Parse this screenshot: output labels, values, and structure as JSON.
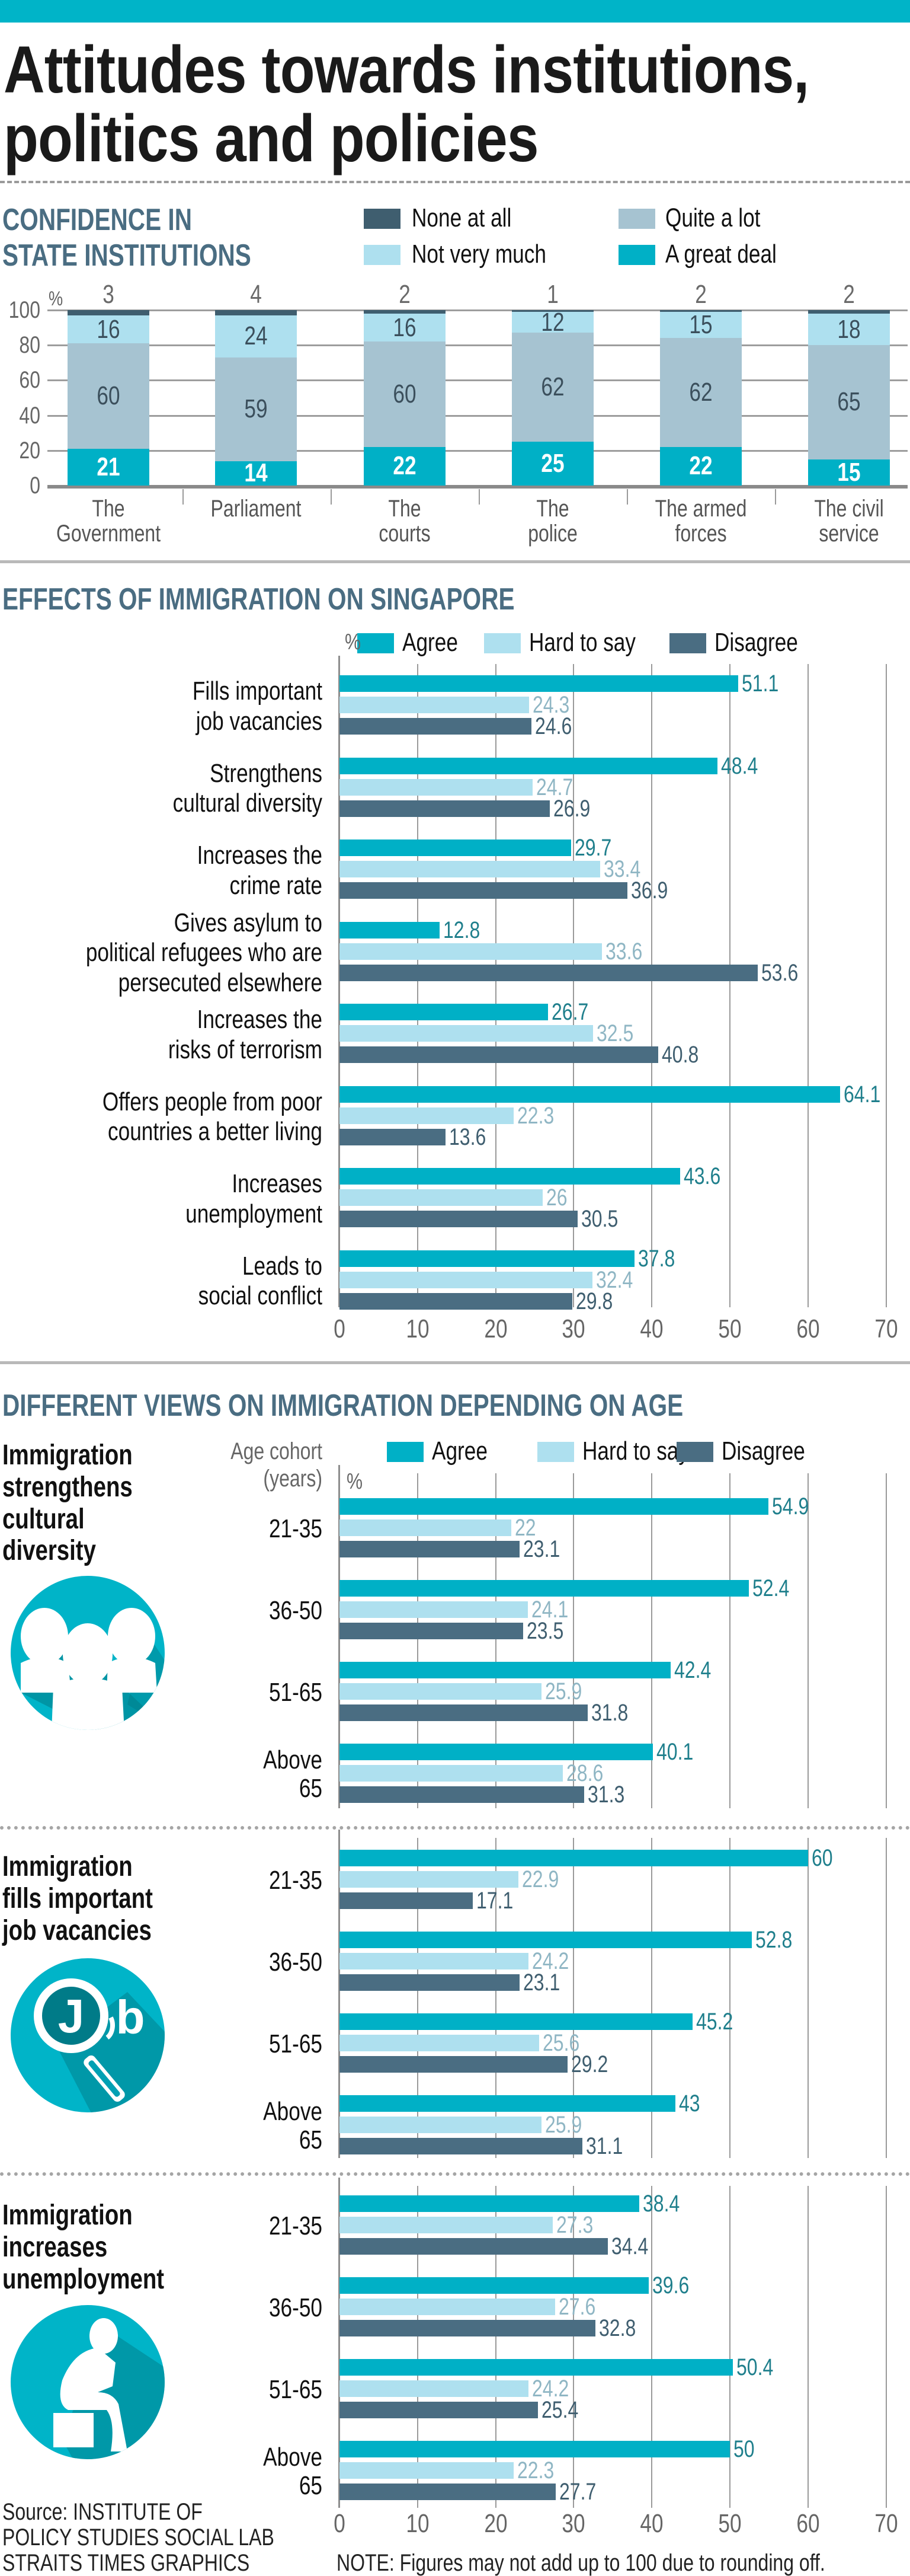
{
  "title": {
    "line1": "Attitudes towards institutions,",
    "line2": "politics and policies"
  },
  "colors": {
    "brand_teal": "#00b4c8",
    "none_at_all": "#3f5e6f",
    "not_very_much": "#aee0ef",
    "quite_a_lot": "#a6c3d1",
    "a_great_deal": "#00b0c6",
    "agree": "#00b0c6",
    "hard_to_say": "#aee0ef",
    "disagree": "#4a6d82",
    "agree_label": "#1f7f8c",
    "hard_to_say_label": "#8fb6c4",
    "disagree_label": "#3f5e6f",
    "section_heading": "#4a6d82"
  },
  "section1": {
    "heading_line1": "CONFIDENCE IN",
    "heading_line2": "STATE INSTITUTIONS",
    "legend": [
      {
        "key": "none_at_all",
        "label": "None at all"
      },
      {
        "key": "quite_a_lot",
        "label": "Quite a lot"
      },
      {
        "key": "not_very_much",
        "label": "Not very much"
      },
      {
        "key": "a_great_deal",
        "label": "A great deal"
      }
    ]
  },
  "section2": {
    "heading": "EFFECTS OF IMMIGRATION ON SINGAPORE",
    "legend": [
      {
        "key": "agree",
        "label": "Agree"
      },
      {
        "key": "hard_to_say",
        "label": "Hard to say"
      },
      {
        "key": "disagree",
        "label": "Disagree"
      }
    ]
  },
  "section3": {
    "heading": "DIFFERENT VIEWS ON IMMIGRATION DEPENDING ON AGE",
    "age_axis_label_line1": "Age cohort",
    "age_axis_label_line2": "(years)",
    "legend": [
      {
        "key": "agree",
        "label": "Agree"
      },
      {
        "key": "hard_to_say",
        "label": "Hard to say"
      },
      {
        "key": "disagree",
        "label": "Disagree"
      }
    ],
    "panels": [
      {
        "title_lines": [
          "Immigration",
          "strengthens",
          "cultural",
          "diversity"
        ],
        "icon": "people-group-icon"
      },
      {
        "title_lines": [
          "Immigration",
          "fills important",
          "job vacancies"
        ],
        "icon": "job-search-icon"
      },
      {
        "title_lines": [
          "Immigration",
          "increases",
          "unemployment"
        ],
        "icon": "worried-person-icon"
      }
    ]
  },
  "footer": {
    "source_line1": "Source: INSTITUTE OF",
    "source_line2": "POLICY STUDIES SOCIAL LAB",
    "credit": "STRAITS TIMES GRAPHICS",
    "note": "NOTE: Figures may not add up to 100 due to rounding off."
  },
  "chart_data": [
    {
      "type": "bar",
      "stacked": true,
      "title": "CONFIDENCE IN STATE INSTITUTIONS",
      "ylabel": "%",
      "ylim": [
        0,
        100
      ],
      "yticks": [
        0,
        20,
        40,
        60,
        80,
        100
      ],
      "grid": true,
      "legend_position": "top-right",
      "categories": [
        [
          "The",
          "Government"
        ],
        [
          "Parliament"
        ],
        [
          "The",
          "courts"
        ],
        [
          "The",
          "police"
        ],
        [
          "The armed",
          "forces"
        ],
        [
          "The civil",
          "service"
        ]
      ],
      "series": [
        {
          "name": "A great deal",
          "key": "a_great_deal",
          "values": [
            21,
            14,
            22,
            25,
            22,
            15
          ]
        },
        {
          "name": "Quite a lot",
          "key": "quite_a_lot",
          "values": [
            60,
            59,
            60,
            62,
            62,
            65
          ]
        },
        {
          "name": "Not very much",
          "key": "not_very_much",
          "values": [
            16,
            24,
            16,
            12,
            15,
            18
          ]
        },
        {
          "name": "None at all",
          "key": "none_at_all",
          "values": [
            3,
            4,
            2,
            1,
            2,
            2
          ]
        }
      ]
    },
    {
      "type": "bar",
      "orientation": "horizontal",
      "title": "EFFECTS OF IMMIGRATION ON SINGAPORE",
      "xlabel": "%",
      "xlim": [
        0,
        70
      ],
      "xticks": [
        0,
        10,
        20,
        30,
        40,
        50,
        60,
        70
      ],
      "grid": true,
      "legend_position": "top",
      "categories": [
        [
          "Fills important",
          "job vacancies"
        ],
        [
          "Strengthens",
          "cultural diversity"
        ],
        [
          "Increases the",
          "crime rate"
        ],
        [
          "Gives asylum to",
          "political refugees who are",
          "persecuted elsewhere"
        ],
        [
          "Increases the",
          "risks of terrorism"
        ],
        [
          "Offers people from poor",
          "countries a better living"
        ],
        [
          "Increases",
          "unemployment"
        ],
        [
          "Leads to",
          "social conflict"
        ]
      ],
      "series": [
        {
          "name": "Agree",
          "key": "agree",
          "values": [
            51.1,
            48.4,
            29.7,
            12.8,
            26.7,
            64.1,
            43.6,
            37.8
          ]
        },
        {
          "name": "Hard to say",
          "key": "hard_to_say",
          "values": [
            24.3,
            24.7,
            33.4,
            33.6,
            32.5,
            22.3,
            26,
            32.4
          ]
        },
        {
          "name": "Disagree",
          "key": "disagree",
          "values": [
            24.6,
            26.9,
            36.9,
            53.6,
            40.8,
            13.6,
            30.5,
            29.8
          ]
        }
      ]
    },
    {
      "type": "bar",
      "orientation": "horizontal",
      "title": "Immigration strengthens cultural diversity",
      "xlabel": "%",
      "xlim": [
        0,
        70
      ],
      "categories": [
        [
          "21-35"
        ],
        [
          "36-50"
        ],
        [
          "51-65"
        ],
        [
          "Above",
          "65"
        ]
      ],
      "series": [
        {
          "name": "Agree",
          "key": "agree",
          "values": [
            54.9,
            52.4,
            42.4,
            40.1
          ]
        },
        {
          "name": "Hard to say",
          "key": "hard_to_say",
          "values": [
            22,
            24.1,
            25.9,
            28.6
          ]
        },
        {
          "name": "Disagree",
          "key": "disagree",
          "values": [
            23.1,
            23.5,
            31.8,
            31.3
          ]
        }
      ]
    },
    {
      "type": "bar",
      "orientation": "horizontal",
      "title": "Immigration fills important job vacancies",
      "xlabel": "%",
      "xlim": [
        0,
        70
      ],
      "categories": [
        [
          "21-35"
        ],
        [
          "36-50"
        ],
        [
          "51-65"
        ],
        [
          "Above",
          "65"
        ]
      ],
      "series": [
        {
          "name": "Agree",
          "key": "agree",
          "values": [
            60,
            52.8,
            45.2,
            43
          ]
        },
        {
          "name": "Hard to say",
          "key": "hard_to_say",
          "values": [
            22.9,
            24.2,
            25.6,
            25.9
          ]
        },
        {
          "name": "Disagree",
          "key": "disagree",
          "values": [
            17.1,
            23.1,
            29.2,
            31.1
          ]
        }
      ]
    },
    {
      "type": "bar",
      "orientation": "horizontal",
      "title": "Immigration increases unemployment",
      "xlabel": "%",
      "xlim": [
        0,
        70
      ],
      "xticks": [
        0,
        10,
        20,
        30,
        40,
        50,
        60,
        70
      ],
      "categories": [
        [
          "21-35"
        ],
        [
          "36-50"
        ],
        [
          "51-65"
        ],
        [
          "Above",
          "65"
        ]
      ],
      "series": [
        {
          "name": "Agree",
          "key": "agree",
          "values": [
            38.4,
            39.6,
            50.4,
            50
          ]
        },
        {
          "name": "Hard to say",
          "key": "hard_to_say",
          "values": [
            27.3,
            27.6,
            24.2,
            22.3
          ]
        },
        {
          "name": "Disagree",
          "key": "disagree",
          "values": [
            34.4,
            32.8,
            25.4,
            27.7
          ]
        }
      ]
    }
  ]
}
